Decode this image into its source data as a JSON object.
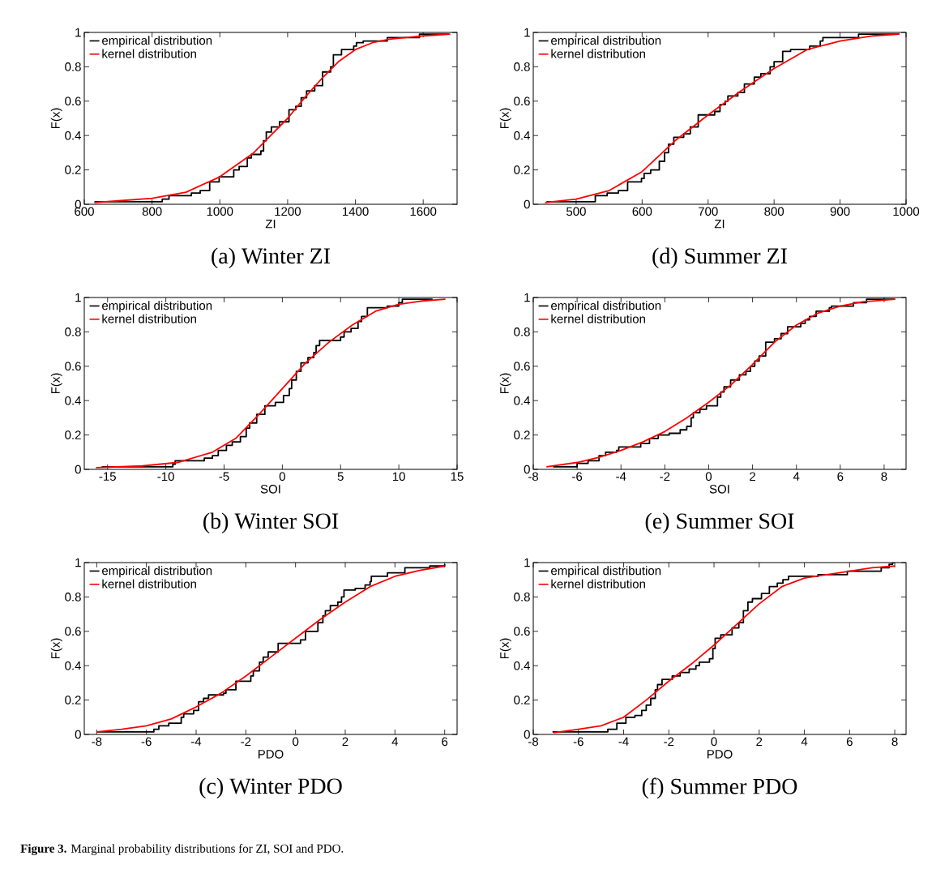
{
  "chart_data": [
    {
      "type": "step",
      "title": "(a) Winter ZI",
      "xlabel": "ZI",
      "ylabel": "F(x)",
      "xlim": [
        600,
        1700
      ],
      "ylim": [
        0,
        1
      ],
      "xticks": [
        600,
        800,
        1000,
        1200,
        1400,
        1600
      ],
      "yticks": [
        0,
        0.2,
        0.4,
        0.6,
        0.8,
        1
      ],
      "legend": "top left",
      "series": [
        {
          "name": "empirical distribution",
          "type": "step",
          "color": "#000000",
          "x": [
            630,
            830,
            850,
            916,
            942,
            970,
            998,
            1041,
            1057,
            1081,
            1093,
            1121,
            1129,
            1137,
            1152,
            1176,
            1204,
            1224,
            1240,
            1256,
            1280,
            1303,
            1327,
            1335,
            1359,
            1395,
            1403,
            1423,
            1494,
            1589,
            1676
          ],
          "values": [
            0.015,
            0.03,
            0.05,
            0.065,
            0.08,
            0.13,
            0.16,
            0.2,
            0.22,
            0.27,
            0.29,
            0.31,
            0.37,
            0.42,
            0.45,
            0.48,
            0.55,
            0.57,
            0.62,
            0.66,
            0.69,
            0.77,
            0.8,
            0.87,
            0.9,
            0.92,
            0.94,
            0.95,
            0.97,
            0.99,
            0.99
          ]
        },
        {
          "name": "kernel distribution",
          "type": "line",
          "color": "#ff0000",
          "x": [
            630,
            700,
            800,
            900,
            1000,
            1100,
            1150,
            1200,
            1250,
            1300,
            1350,
            1400,
            1450,
            1500,
            1600,
            1680
          ],
          "values": [
            0.01,
            0.02,
            0.035,
            0.07,
            0.16,
            0.3,
            0.4,
            0.5,
            0.62,
            0.73,
            0.83,
            0.9,
            0.94,
            0.96,
            0.98,
            0.99
          ]
        }
      ]
    },
    {
      "type": "step",
      "title": "(d) Summer ZI",
      "xlabel": "ZI",
      "ylabel": "F(x)",
      "xlim": [
        435,
        1000
      ],
      "ylim": [
        0,
        1
      ],
      "xticks": [
        500,
        600,
        700,
        800,
        900,
        1000
      ],
      "yticks": [
        0,
        0.2,
        0.4,
        0.6,
        0.8,
        1
      ],
      "legend": "top left",
      "series": [
        {
          "name": "empirical distribution",
          "type": "step",
          "color": "#000000",
          "x": [
            455,
            529,
            547,
            564,
            578,
            599,
            603,
            613,
            626,
            634,
            640,
            648,
            663,
            673,
            685,
            710,
            718,
            726,
            730,
            745,
            755,
            770,
            780,
            794,
            800,
            813,
            825,
            854,
            870,
            874,
            928,
            990
          ],
          "values": [
            0.015,
            0.05,
            0.065,
            0.08,
            0.13,
            0.15,
            0.18,
            0.2,
            0.25,
            0.3,
            0.35,
            0.39,
            0.41,
            0.45,
            0.52,
            0.54,
            0.58,
            0.6,
            0.63,
            0.65,
            0.7,
            0.74,
            0.76,
            0.8,
            0.83,
            0.89,
            0.9,
            0.92,
            0.95,
            0.97,
            0.99,
            0.99
          ]
        },
        {
          "name": "kernel distribution",
          "type": "line",
          "color": "#ff0000",
          "x": [
            453,
            500,
            550,
            600,
            650,
            700,
            750,
            800,
            850,
            900,
            950,
            990
          ],
          "values": [
            0.01,
            0.03,
            0.08,
            0.19,
            0.37,
            0.52,
            0.66,
            0.79,
            0.9,
            0.95,
            0.98,
            0.99
          ]
        }
      ]
    },
    {
      "type": "step",
      "title": "(b) Winter SOI",
      "xlabel": "SOI",
      "ylabel": "F(x)",
      "xlim": [
        -17,
        15
      ],
      "ylim": [
        0,
        1
      ],
      "xticks": [
        -15,
        -10,
        -5,
        0,
        5,
        10,
        15
      ],
      "yticks": [
        0,
        0.2,
        0.4,
        0.6,
        0.8,
        1
      ],
      "legend": "top left",
      "series": [
        {
          "name": "empirical distribution",
          "type": "step",
          "color": "#000000",
          "x": [
            -15.5,
            -9.4,
            -9.2,
            -6.7,
            -6,
            -5.5,
            -4.8,
            -4.3,
            -3.6,
            -3.1,
            -2.8,
            -2.2,
            -1.5,
            -0.6,
            0.1,
            0.6,
            0.8,
            1.2,
            1.6,
            2.2,
            2.7,
            2.9,
            3.2,
            5,
            5.3,
            5.9,
            6.5,
            6.8,
            7.3,
            9,
            10,
            10.3,
            12.9
          ],
          "values": [
            0.015,
            0.03,
            0.05,
            0.065,
            0.08,
            0.11,
            0.14,
            0.16,
            0.19,
            0.24,
            0.27,
            0.32,
            0.37,
            0.39,
            0.43,
            0.47,
            0.52,
            0.57,
            0.62,
            0.65,
            0.68,
            0.72,
            0.75,
            0.77,
            0.8,
            0.82,
            0.86,
            0.89,
            0.94,
            0.95,
            0.97,
            0.99,
            0.99
          ]
        },
        {
          "name": "kernel distribution",
          "type": "line",
          "color": "#ff0000",
          "x": [
            -16,
            -12,
            -9,
            -6,
            -4,
            -2,
            0,
            2,
            4,
            6,
            8,
            10,
            12,
            14
          ],
          "values": [
            0.01,
            0.02,
            0.04,
            0.1,
            0.18,
            0.32,
            0.47,
            0.62,
            0.74,
            0.84,
            0.92,
            0.96,
            0.98,
            0.99
          ]
        }
      ]
    },
    {
      "type": "step",
      "title": "(e) Summer SOI",
      "xlabel": "SOI",
      "ylabel": "F(x)",
      "xlim": [
        -8,
        9
      ],
      "ylim": [
        0,
        1
      ],
      "xticks": [
        -8,
        -6,
        -4,
        -2,
        0,
        2,
        4,
        6,
        8
      ],
      "yticks": [
        0,
        0.2,
        0.4,
        0.6,
        0.8,
        1
      ],
      "legend": "top left",
      "series": [
        {
          "name": "empirical distribution",
          "type": "step",
          "color": "#000000",
          "x": [
            -7.1,
            -6,
            -5.5,
            -5,
            -4.7,
            -4.2,
            -4.1,
            -3.1,
            -2.7,
            -2.3,
            -1.8,
            -1.3,
            -1,
            -0.8,
            -0.7,
            -0.4,
            -0.1,
            0.4,
            0.55,
            0.7,
            1,
            1.4,
            1.7,
            1.9,
            2.1,
            2.3,
            2.6,
            3,
            3.3,
            3.6,
            4.2,
            4.4,
            4.6,
            4.9,
            5.5,
            5.6,
            6.6,
            7.2,
            8.5
          ],
          "values": [
            0.015,
            0.035,
            0.05,
            0.08,
            0.1,
            0.11,
            0.13,
            0.15,
            0.18,
            0.2,
            0.21,
            0.23,
            0.25,
            0.3,
            0.33,
            0.35,
            0.37,
            0.42,
            0.45,
            0.48,
            0.52,
            0.55,
            0.57,
            0.6,
            0.63,
            0.66,
            0.74,
            0.76,
            0.79,
            0.83,
            0.85,
            0.87,
            0.89,
            0.92,
            0.94,
            0.95,
            0.97,
            0.99,
            0.99
          ]
        },
        {
          "name": "kernel distribution",
          "type": "line",
          "color": "#ff0000",
          "x": [
            -7.4,
            -6,
            -5,
            -4,
            -3,
            -2,
            -1,
            0,
            1,
            2,
            3,
            4,
            5,
            6,
            7,
            8.5
          ],
          "values": [
            0.015,
            0.04,
            0.07,
            0.11,
            0.16,
            0.22,
            0.3,
            0.39,
            0.49,
            0.61,
            0.74,
            0.84,
            0.91,
            0.95,
            0.975,
            0.99
          ]
        }
      ]
    },
    {
      "type": "step",
      "title": "(c) Winter PDO",
      "xlabel": "PDO",
      "ylabel": "F(x)",
      "xlim": [
        -8.5,
        6.5
      ],
      "ylim": [
        0,
        1
      ],
      "xticks": [
        -8,
        -6,
        -4,
        -2,
        0,
        2,
        4,
        6
      ],
      "yticks": [
        0,
        0.2,
        0.4,
        0.6,
        0.8,
        1
      ],
      "legend": "top left",
      "series": [
        {
          "name": "empirical distribution",
          "type": "step",
          "color": "#000000",
          "x": [
            -8,
            -5.7,
            -5.5,
            -5.1,
            -4.6,
            -4.5,
            -4.1,
            -3.9,
            -3.7,
            -3.5,
            -2.9,
            -2.8,
            -2.4,
            -1.8,
            -1.7,
            -1.45,
            -1.3,
            -1.1,
            -0.7,
            0.2,
            0.4,
            0.9,
            1.1,
            1.2,
            1.4,
            1.7,
            1.85,
            1.95,
            2.4,
            2.8,
            3,
            3.05,
            3.7,
            4.4,
            5.4,
            6
          ],
          "values": [
            0.015,
            0.03,
            0.05,
            0.065,
            0.1,
            0.12,
            0.14,
            0.19,
            0.21,
            0.23,
            0.24,
            0.26,
            0.31,
            0.34,
            0.37,
            0.42,
            0.45,
            0.48,
            0.53,
            0.55,
            0.6,
            0.65,
            0.69,
            0.72,
            0.75,
            0.77,
            0.8,
            0.84,
            0.85,
            0.87,
            0.89,
            0.92,
            0.94,
            0.97,
            0.98,
            0.99
          ]
        },
        {
          "name": "kernel distribution",
          "type": "line",
          "color": "#ff0000",
          "x": [
            -8,
            -7,
            -6,
            -5,
            -4,
            -3,
            -2,
            -1,
            0,
            1,
            2,
            3,
            4,
            5,
            6
          ],
          "values": [
            0.015,
            0.03,
            0.05,
            0.09,
            0.16,
            0.24,
            0.34,
            0.45,
            0.56,
            0.67,
            0.77,
            0.86,
            0.92,
            0.955,
            0.98
          ]
        }
      ]
    },
    {
      "type": "step",
      "title": "(f) Summer PDO",
      "xlabel": "PDO",
      "ylabel": "F(x)",
      "xlim": [
        -8,
        8.5
      ],
      "ylim": [
        0,
        1
      ],
      "xticks": [
        -8,
        -6,
        -4,
        -2,
        0,
        2,
        4,
        6,
        8
      ],
      "yticks": [
        0,
        0.2,
        0.4,
        0.6,
        0.8,
        1
      ],
      "legend": "top left",
      "series": [
        {
          "name": "empirical distribution",
          "type": "step",
          "color": "#000000",
          "x": [
            -7.15,
            -4.7,
            -4.3,
            -3.9,
            -3.5,
            -3.2,
            -3,
            -2.8,
            -2.6,
            -2.5,
            -2.3,
            -1.85,
            -1.5,
            -1.1,
            -0.8,
            -0.65,
            -0.2,
            -0.05,
            0.05,
            0.3,
            0.8,
            1.1,
            1.3,
            1.5,
            1.7,
            2.1,
            2.45,
            2.8,
            3.05,
            3.3,
            4.6,
            5.9,
            7.4,
            7.75,
            7.9,
            8
          ],
          "values": [
            0.015,
            0.03,
            0.065,
            0.1,
            0.11,
            0.14,
            0.17,
            0.21,
            0.26,
            0.29,
            0.32,
            0.34,
            0.36,
            0.38,
            0.4,
            0.42,
            0.44,
            0.5,
            0.56,
            0.58,
            0.62,
            0.65,
            0.72,
            0.77,
            0.79,
            0.82,
            0.86,
            0.88,
            0.9,
            0.92,
            0.93,
            0.95,
            0.97,
            0.99,
            1,
            1
          ]
        },
        {
          "name": "kernel distribution",
          "type": "line",
          "color": "#ff0000",
          "x": [
            -7.1,
            -6,
            -5,
            -4,
            -3,
            -2,
            -1,
            0,
            1,
            2,
            3,
            4,
            5,
            6,
            7,
            8
          ],
          "values": [
            0.01,
            0.03,
            0.05,
            0.1,
            0.2,
            0.31,
            0.41,
            0.52,
            0.64,
            0.76,
            0.86,
            0.91,
            0.93,
            0.95,
            0.97,
            0.98
          ]
        }
      ]
    },
    {
      "type": "other",
      "annotations": [
        "**Figure 3.** Marginal probability distributions for ZI, SOI and PDO."
      ]
    }
  ]
}
